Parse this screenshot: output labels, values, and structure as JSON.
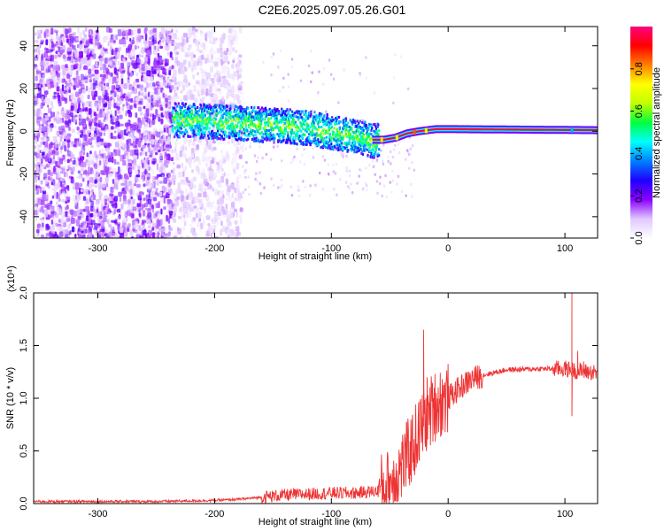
{
  "title": "C2E6.2025.097.05.26.G01",
  "chart_data": [
    {
      "type": "heatmap",
      "xlabel": "Height of straight line (km)",
      "ylabel": "Frequency (Hz)",
      "xlim": [
        -355,
        128
      ],
      "ylim": [
        -50,
        49
      ],
      "xticks": [
        -300,
        -200,
        -100,
        0,
        100
      ],
      "yticks": [
        -40,
        -20,
        0,
        20,
        40
      ],
      "xtick_labels": [
        "-300",
        "-200",
        "-100",
        "0",
        "100"
      ],
      "ytick_labels": [
        "-40",
        "-20",
        "0",
        "20",
        "40"
      ],
      "colorbar": {
        "label": "Normalized spectral amplitude",
        "range": [
          0,
          1
        ],
        "ticks": [
          0,
          0.2,
          0.4,
          0.6,
          0.8
        ],
        "tick_labels": [
          "0.0",
          "0.2",
          "0.4",
          "0.6",
          "0.8"
        ],
        "colormap": [
          "#ffffff",
          "#e0c8ff",
          "#8a00ff",
          "#2000ff",
          "#0080ff",
          "#00ffff",
          "#00ff40",
          "#c0ff00",
          "#ffff00",
          "#ff8000",
          "#ff0000",
          "#ff0080"
        ]
      },
      "regions": [
        {
          "x_range": [
            -355,
            -237
          ],
          "freq_range": [
            -50,
            49
          ],
          "amplitude": 0.15,
          "description": "broadband noise"
        },
        {
          "x_range": [
            -237,
            -178
          ],
          "freq_range": [
            -50,
            49
          ],
          "amplitude": 0.08,
          "description": "weaker broadband noise"
        },
        {
          "x_range": [
            -237,
            -60
          ],
          "freq_range": [
            -12,
            12
          ],
          "amplitude": 0.35,
          "description": "wandering signal band"
        },
        {
          "x_range": [
            -60,
            128
          ],
          "freq_range": [
            -2,
            2
          ],
          "amplitude": 0.95,
          "description": "stable carrier line"
        }
      ],
      "ridge": {
        "x": [
          -237,
          -200,
          -170,
          -140,
          -120,
          -100,
          -80,
          -65,
          -55,
          -45,
          -35,
          -25,
          -10,
          0,
          128
        ],
        "freq": [
          6,
          5,
          4,
          3,
          2,
          0,
          -2,
          -4,
          -4,
          -3,
          -1,
          0,
          1,
          1,
          0.5
        ]
      }
    },
    {
      "type": "line",
      "xlabel": "Height of straight line (km)",
      "ylabel": "SNR (10 * v/v)",
      "y_multiplier": "(x10⁴)",
      "xlim": [
        -355,
        128
      ],
      "ylim": [
        0,
        2.0
      ],
      "xticks": [
        -300,
        -200,
        -100,
        0,
        100
      ],
      "yticks": [
        0,
        0.5,
        1.0,
        1.5,
        2.0
      ],
      "xtick_labels": [
        "-300",
        "-200",
        "-100",
        "0",
        "100"
      ],
      "ytick_labels": [
        "0.0",
        "0.5",
        "1.0",
        "1.5",
        "2.0"
      ],
      "series": [
        {
          "color": "#ee3333",
          "x": [
            -355,
            -300,
            -250,
            -200,
            -180,
            -160,
            -140,
            -120,
            -100,
            -80,
            -60,
            -50,
            -40,
            -30,
            -20,
            -10,
            0,
            10,
            20,
            30,
            50,
            80,
            100,
            110,
            120,
            128
          ],
          "y": [
            0.02,
            0.02,
            0.02,
            0.03,
            0.04,
            0.06,
            0.08,
            0.09,
            0.1,
            0.1,
            0.12,
            0.18,
            0.35,
            0.55,
            0.8,
            0.95,
            1.0,
            1.1,
            1.18,
            1.22,
            1.27,
            1.28,
            1.28,
            1.26,
            1.25,
            1.24
          ],
          "spikes": [
            [
              -21,
              1.65
            ],
            [
              -18,
              1.2
            ],
            [
              -12,
              1.1
            ],
            [
              106,
              2.0
            ],
            [
              106,
              0.83
            ],
            [
              111,
              1.45
            ],
            [
              116,
              1.35
            ]
          ]
        }
      ]
    }
  ]
}
